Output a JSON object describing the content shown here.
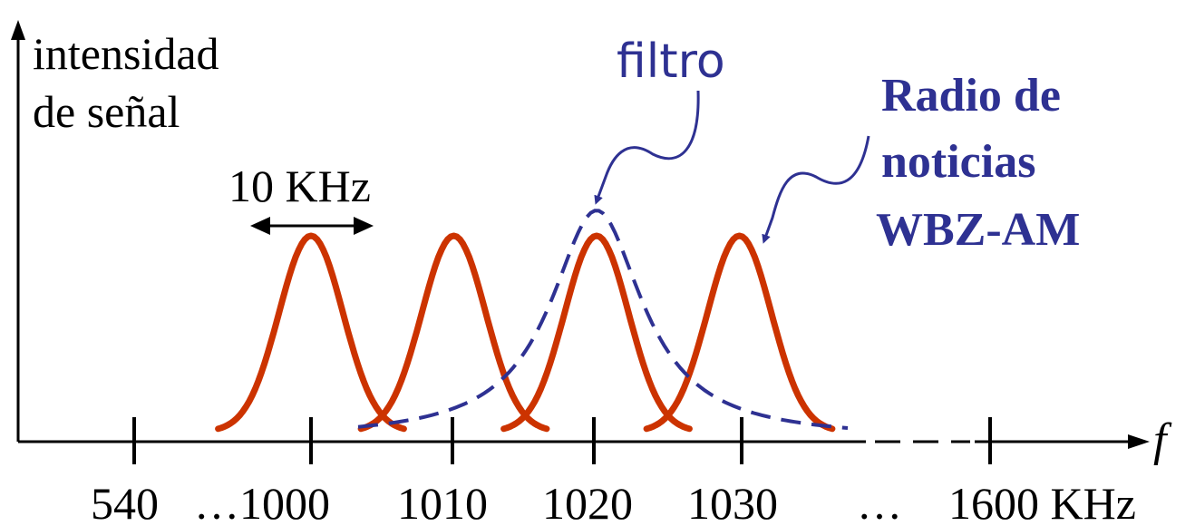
{
  "y_axis_label": {
    "line1": "intensidad",
    "line2": "de señal"
  },
  "x_axis_label": "f",
  "bandwidth_label": "10 KHz",
  "filter_label": "filtro",
  "station_label": {
    "line1": "Radio de",
    "line2": "noticias",
    "line3": "WBZ-AM"
  },
  "tick_labels": {
    "t540": "540",
    "t1000": "…1000",
    "t1010": "1010",
    "t1020": "1020",
    "t1030": "1030",
    "dots": "…",
    "t1600": "1600 KHz"
  },
  "colors": {
    "axis": "#000000",
    "signal": "#cc3300",
    "filter": "#2e3192",
    "annotation": "#2e3192"
  },
  "chart_data": {
    "type": "line",
    "x_unit": "KHz",
    "signals": [
      {
        "center": 1000,
        "bandwidth": 10
      },
      {
        "center": 1010,
        "bandwidth": 10
      },
      {
        "center": 1020,
        "bandwidth": 10
      },
      {
        "center": 1030,
        "bandwidth": 10
      }
    ],
    "filter": {
      "center": 1020,
      "style": "dashed"
    },
    "ticks": [
      540,
      1000,
      1010,
      1020,
      1030,
      1600
    ]
  }
}
